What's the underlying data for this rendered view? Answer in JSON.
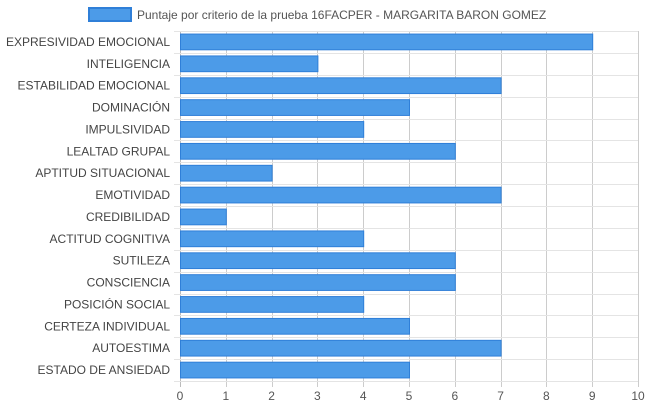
{
  "chart_data": {
    "type": "bar",
    "orientation": "horizontal",
    "categories": [
      "EXPRESIVIDAD EMOCIONAL",
      "INTELIGENCIA",
      "ESTABILIDAD EMOCIONAL",
      "DOMINACIÓN",
      "IMPULSIVIDAD",
      "LEALTAD GRUPAL",
      "APTITUD SITUACIONAL",
      "EMOTIVIDAD",
      "CREDIBILIDAD",
      "ACTITUD COGNITIVA",
      "SUTILEZA",
      "CONSCIENCIA",
      "POSICIÓN SOCIAL",
      "CERTEZA INDIVIDUAL",
      "AUTOESTIMA",
      "ESTADO DE ANSIEDAD"
    ],
    "series": [
      {
        "name": "Puntaje por criterio de la prueba 16FACPER - MARGARITA BARON GOMEZ",
        "values": [
          9,
          3,
          7,
          5,
          4,
          6,
          2,
          7,
          1,
          4,
          6,
          6,
          4,
          5,
          7,
          5
        ],
        "color": "#4c9be8",
        "border_color": "#2f7fd8"
      }
    ],
    "x_ticks": [
      "0",
      "1",
      "2",
      "3",
      "4",
      "5",
      "6",
      "7",
      "8",
      "9",
      "10"
    ],
    "xlim": [
      0,
      10
    ],
    "grid": true,
    "legend_position": "top"
  }
}
